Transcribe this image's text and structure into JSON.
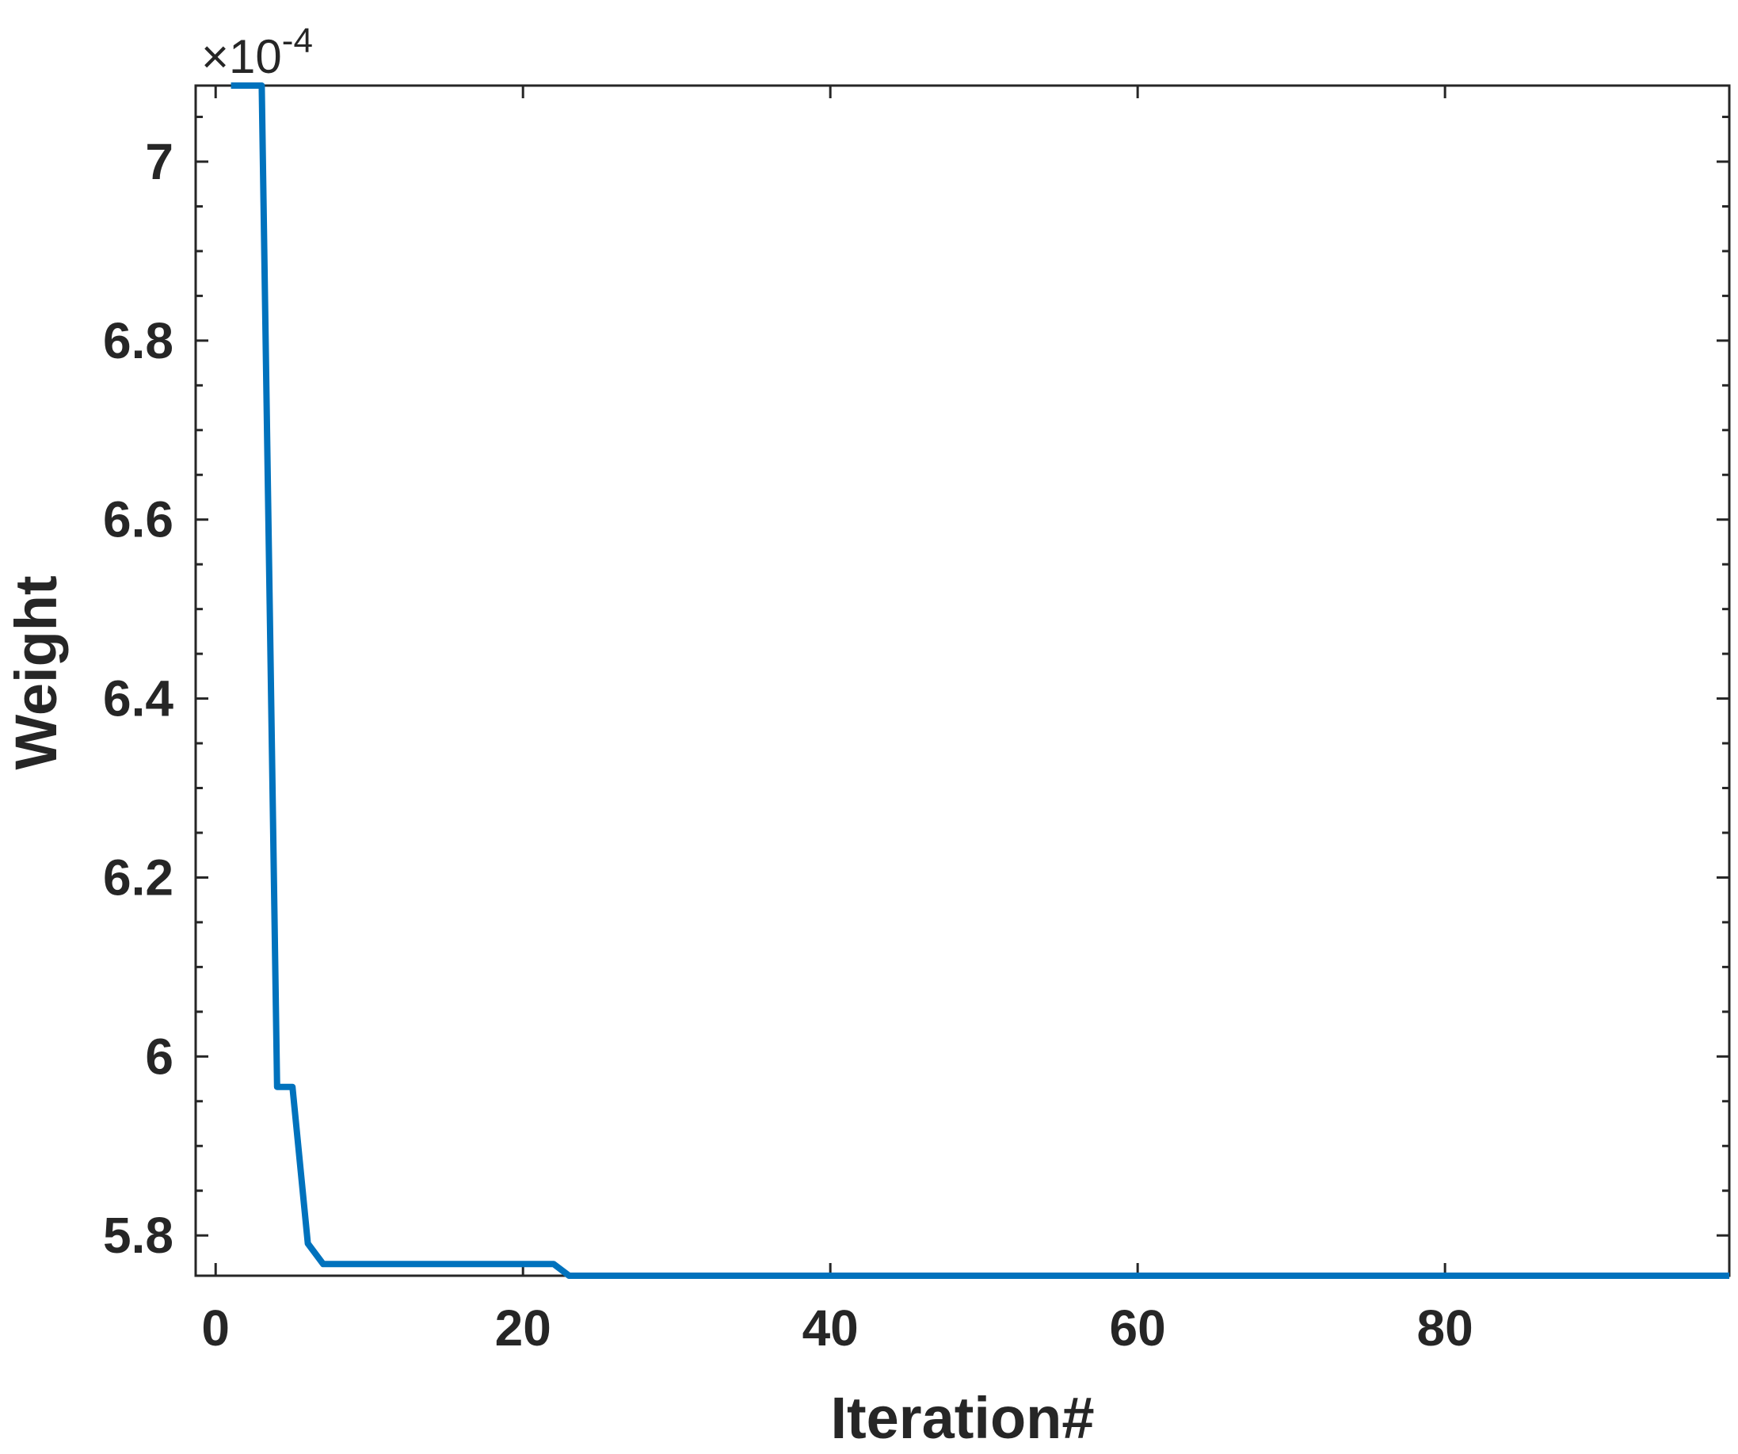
{
  "chart_data": {
    "type": "line",
    "title": "",
    "xlabel": "Iteration#",
    "ylabel": "Weight",
    "y_multiplier": {
      "times": "×",
      "base": "10",
      "exponent": "-4"
    },
    "xlim": [
      -1.3,
      98.5
    ],
    "ylim": [
      5.755,
      7.085
    ],
    "xticks": [
      0,
      20,
      40,
      60,
      80
    ],
    "xtick_labels": [
      "0",
      "20",
      "40",
      "60",
      "80"
    ],
    "yticks": [
      5.8,
      6.0,
      6.2,
      6.4,
      6.6,
      6.8,
      7.0
    ],
    "ytick_labels": [
      "5.8",
      "6",
      "6.2",
      "6.4",
      "6.6",
      "6.8",
      "7"
    ],
    "y_minor_step": 0.05,
    "grid": false,
    "series": [
      {
        "color": "#0072BD",
        "x": [
          1,
          2,
          3,
          4,
          5,
          6,
          7,
          8,
          9,
          10,
          11,
          12,
          13,
          14,
          15,
          16,
          17,
          18,
          19,
          20,
          21,
          22,
          23,
          24,
          98.5
        ],
        "y": [
          7.085,
          7.085,
          7.085,
          5.966,
          5.966,
          5.791,
          5.768,
          5.768,
          5.768,
          5.768,
          5.768,
          5.768,
          5.768,
          5.768,
          5.768,
          5.768,
          5.768,
          5.768,
          5.768,
          5.768,
          5.768,
          5.768,
          5.755,
          5.755,
          5.755
        ]
      }
    ]
  }
}
